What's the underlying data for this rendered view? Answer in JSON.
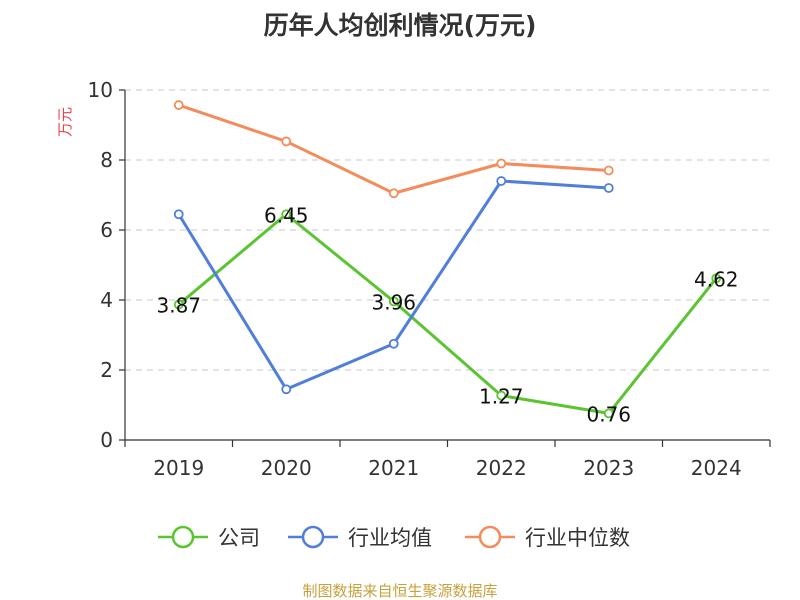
{
  "chart_data": {
    "type": "line",
    "title": "历年人均创利情况(万元)",
    "ylabel": "万元",
    "categories": [
      "2019",
      "2020",
      "2021",
      "2022",
      "2023",
      "2024"
    ],
    "ylim": [
      0,
      10
    ],
    "yticks": [
      0,
      2,
      4,
      6,
      8,
      10
    ],
    "grid": true,
    "legend_position": "bottom",
    "series": [
      {
        "name": "公司",
        "color": "#5bc431",
        "values": [
          3.87,
          6.45,
          3.96,
          1.27,
          0.76,
          4.62
        ],
        "labels": [
          "3.87",
          "6.45",
          "3.96",
          "1.27",
          "0.76",
          "4.62"
        ]
      },
      {
        "name": "行业均值",
        "color": "#4f7fd9",
        "values": [
          6.45,
          1.45,
          2.75,
          7.4,
          7.2,
          null
        ]
      },
      {
        "name": "行业中位数",
        "color": "#f38c5a",
        "values": [
          9.57,
          8.53,
          7.05,
          7.9,
          7.7,
          null
        ]
      }
    ]
  },
  "source": "制图数据来自恒生聚源数据库"
}
